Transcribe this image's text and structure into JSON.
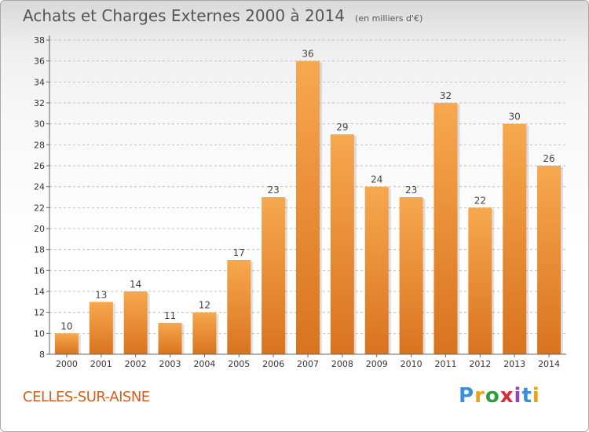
{
  "title": "Achats et Charges Externes 2000 à 2014",
  "subtitle": "(en milliers d'€)",
  "city": "CELLES-SUR-AISNE",
  "logo": {
    "text": "Proxiti",
    "colors": [
      "#3a8fd6",
      "#e8a21a",
      "#2c9e3f",
      "#d62d3a",
      "#9b3fb5",
      "#3a8fd6",
      "#e8a21a"
    ]
  },
  "colors": {
    "bar_light": "#f7a84e",
    "bar_dark": "#d9731f",
    "axis": "#666666",
    "grid": "#bfbfbf",
    "city": "#d2601a"
  },
  "chart_data": {
    "type": "bar",
    "categories": [
      "2000",
      "2001",
      "2002",
      "2003",
      "2004",
      "2005",
      "2006",
      "2007",
      "2008",
      "2009",
      "2010",
      "2011",
      "2012",
      "2013",
      "2014"
    ],
    "values": [
      10,
      13,
      14,
      11,
      12,
      17,
      23,
      36,
      29,
      24,
      23,
      32,
      22,
      30,
      26
    ],
    "yticks": [
      8,
      10,
      12,
      14,
      16,
      18,
      20,
      22,
      24,
      26,
      28,
      30,
      32,
      34,
      36,
      38
    ],
    "ylim": [
      8,
      38
    ],
    "grid": "horizontal dashed",
    "legend": "none"
  }
}
